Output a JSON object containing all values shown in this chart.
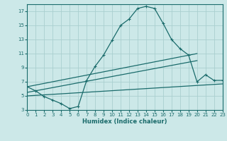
{
  "xlabel": "Humidex (Indice chaleur)",
  "bg_color": "#cce8e8",
  "grid_color": "#aacfcf",
  "line_color": "#1a6b6b",
  "x_min": 0,
  "x_max": 23,
  "y_min": 3,
  "y_max": 18,
  "yticks": [
    3,
    5,
    7,
    9,
    11,
    13,
    15,
    17
  ],
  "xticks": [
    0,
    1,
    2,
    3,
    4,
    5,
    6,
    7,
    8,
    9,
    10,
    11,
    12,
    13,
    14,
    15,
    16,
    17,
    18,
    19,
    20,
    21,
    22,
    23
  ],
  "line1_x": [
    0,
    1,
    2,
    3,
    4,
    5,
    6,
    7,
    8,
    9,
    10,
    11,
    12,
    13,
    14,
    15,
    16,
    17,
    18,
    19,
    20,
    21,
    22,
    23
  ],
  "line1_y": [
    6.3,
    5.7,
    4.9,
    4.4,
    3.9,
    3.2,
    3.5,
    7.2,
    9.2,
    10.8,
    12.9,
    15.0,
    15.9,
    17.4,
    17.7,
    17.4,
    15.3,
    13.0,
    11.7,
    10.8,
    7.0,
    8.0,
    7.2,
    7.2
  ],
  "line2_x": [
    0,
    20
  ],
  "line2_y": [
    6.3,
    11.0
  ],
  "line3_x": [
    0,
    20
  ],
  "line3_y": [
    5.5,
    10.0
  ],
  "line4_x": [
    0,
    23
  ],
  "line4_y": [
    5.0,
    6.7
  ]
}
